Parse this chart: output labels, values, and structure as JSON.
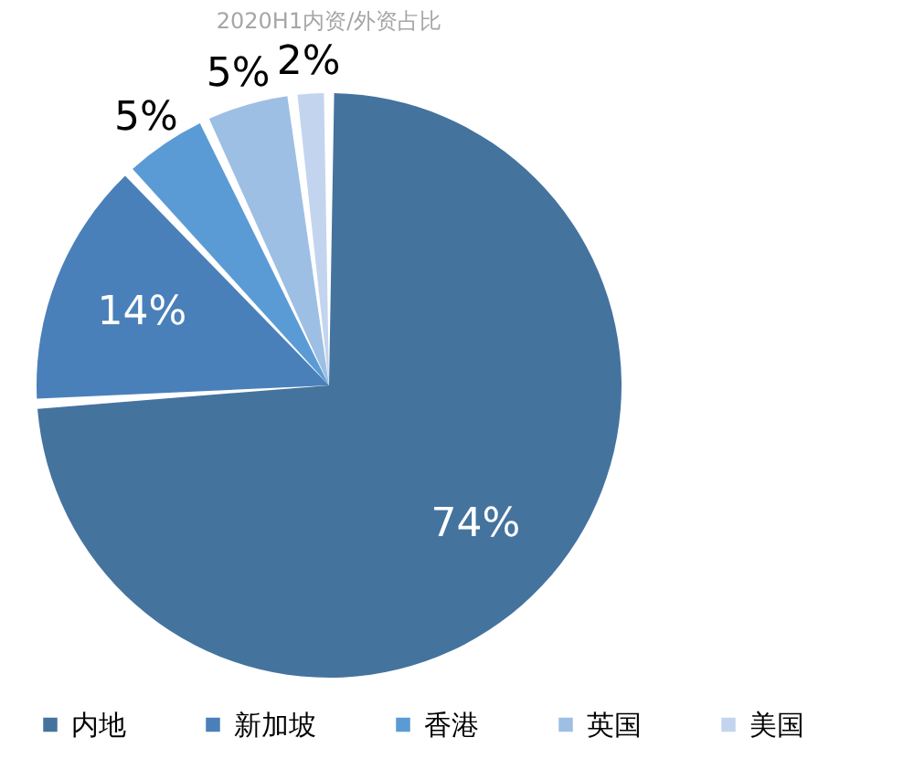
{
  "chart_data": {
    "type": "pie",
    "title": "2020H1内资/外资占比",
    "categories": [
      "内地",
      "新加坡",
      "香港",
      "英国",
      "美国"
    ],
    "values": [
      74,
      14,
      5,
      5,
      2
    ],
    "colors": [
      "#44739e",
      "#4a80b9",
      "#5b9bd5",
      "#9dbfe3",
      "#c3d5ee"
    ],
    "value_labels": [
      "74%",
      "14%",
      "5%",
      "5%",
      "2%"
    ],
    "legend": "bottom"
  }
}
